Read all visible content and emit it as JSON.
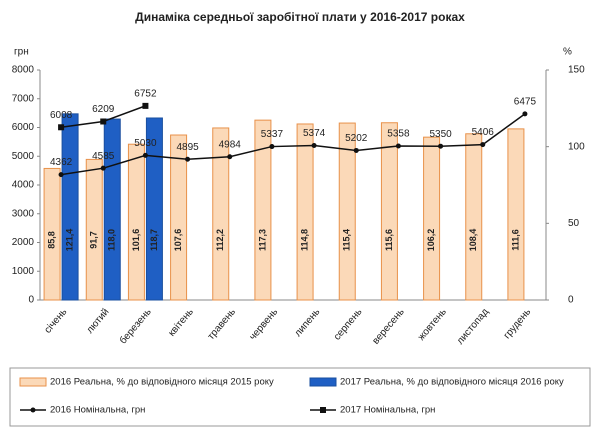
{
  "chart_data": {
    "type": "bar",
    "title": "Динаміка середньої заробітної плати у 2016-2017 роках",
    "y_label": "грн",
    "y2_label": "%",
    "categories": [
      "січень",
      "лютий",
      "березень",
      "квітень",
      "травень",
      "червень",
      "липень",
      "серпень",
      "вересень",
      "жовтень",
      "листопад",
      "грудень"
    ],
    "ylim": [
      0,
      8000
    ],
    "yticks": [
      0,
      1000,
      2000,
      3000,
      4000,
      5000,
      6000,
      7000,
      8000
    ],
    "y2lim": [
      0,
      150
    ],
    "y2ticks": [
      0,
      50,
      100,
      150
    ],
    "series": [
      {
        "name": "2016 Реальна, % до відповідного місяця 2015 року",
        "type": "bar",
        "axis": "y2",
        "color": "#fbd9b8",
        "stroke": "#e8914a",
        "values": [
          85.8,
          91.7,
          101.6,
          107.6,
          112.2,
          117.3,
          114.8,
          115.4,
          115.6,
          106.2,
          108.4,
          111.6
        ],
        "value_labels": [
          "85,8",
          "91,7",
          "101,6",
          "107,6",
          "112,2",
          "117,3",
          "114,8",
          "115,4",
          "115,6",
          "106,2",
          "108,4",
          "111,6"
        ]
      },
      {
        "name": "2017 Реальна, % до відповідного місяця 2016 року",
        "type": "bar",
        "axis": "y2",
        "color": "#1f5fc4",
        "stroke": "#1a4f9f",
        "values": [
          121.4,
          118.0,
          118.7,
          null,
          null,
          null,
          null,
          null,
          null,
          null,
          null,
          null
        ],
        "value_labels": [
          "121,4",
          "118,0",
          "118,7",
          null,
          null,
          null,
          null,
          null,
          null,
          null,
          null,
          null
        ]
      },
      {
        "name": "2016 Номінальна, грн",
        "type": "line",
        "marker": "circle",
        "color": "#111111",
        "values": [
          4362,
          4585,
          5030,
          4895,
          4984,
          5337,
          5374,
          5202,
          5358,
          5350,
          5406,
          6475
        ]
      },
      {
        "name": "2017 Номінальна, грн",
        "type": "line",
        "marker": "square",
        "color": "#111111",
        "values": [
          6008,
          6209,
          6752,
          null,
          null,
          null,
          null,
          null,
          null,
          null,
          null,
          null
        ]
      }
    ]
  }
}
